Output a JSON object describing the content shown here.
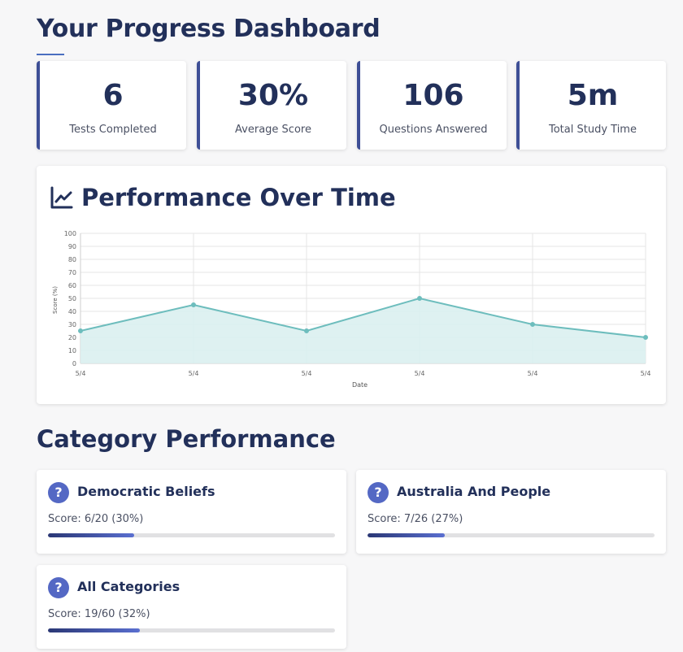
{
  "header": {
    "title": "Your Progress Dashboard"
  },
  "stats": [
    {
      "value": "6",
      "label": "Tests Completed"
    },
    {
      "value": "30%",
      "label": "Average Score"
    },
    {
      "value": "106",
      "label": "Questions Answered"
    },
    {
      "value": "5m",
      "label": "Total Study Time"
    }
  ],
  "performance": {
    "title": "Performance Over Time",
    "icon": "line-chart-icon"
  },
  "chart_data": {
    "type": "area",
    "categories": [
      "5/4",
      "5/4",
      "5/4",
      "5/4",
      "5/4",
      "5/4"
    ],
    "series": [
      {
        "values": [
          25,
          45,
          25,
          50,
          30,
          20
        ]
      }
    ],
    "xlabel": "Date",
    "ylabel": "Score (%)",
    "ylim": [
      0,
      100
    ],
    "yticks": [
      "0",
      "10",
      "20",
      "30",
      "40",
      "50",
      "60",
      "70",
      "80",
      "90",
      "100"
    ],
    "grid": true,
    "colors": {
      "line": "#6dbdbd",
      "fill": "#d8eeee",
      "grid": "#e6e6e6"
    }
  },
  "categories_section": {
    "title": "Category Performance",
    "items": [
      {
        "name": "Democratic Beliefs",
        "score_text": "Score: 6/20 (30%)",
        "progress": 0.3
      },
      {
        "name": "Australia And People",
        "score_text": "Score: 7/26 (27%)",
        "progress": 0.27
      },
      {
        "name": "All Categories",
        "score_text": "Score: 19/60 (32%)",
        "progress": 0.32
      }
    ],
    "icon_glyph": "?"
  }
}
